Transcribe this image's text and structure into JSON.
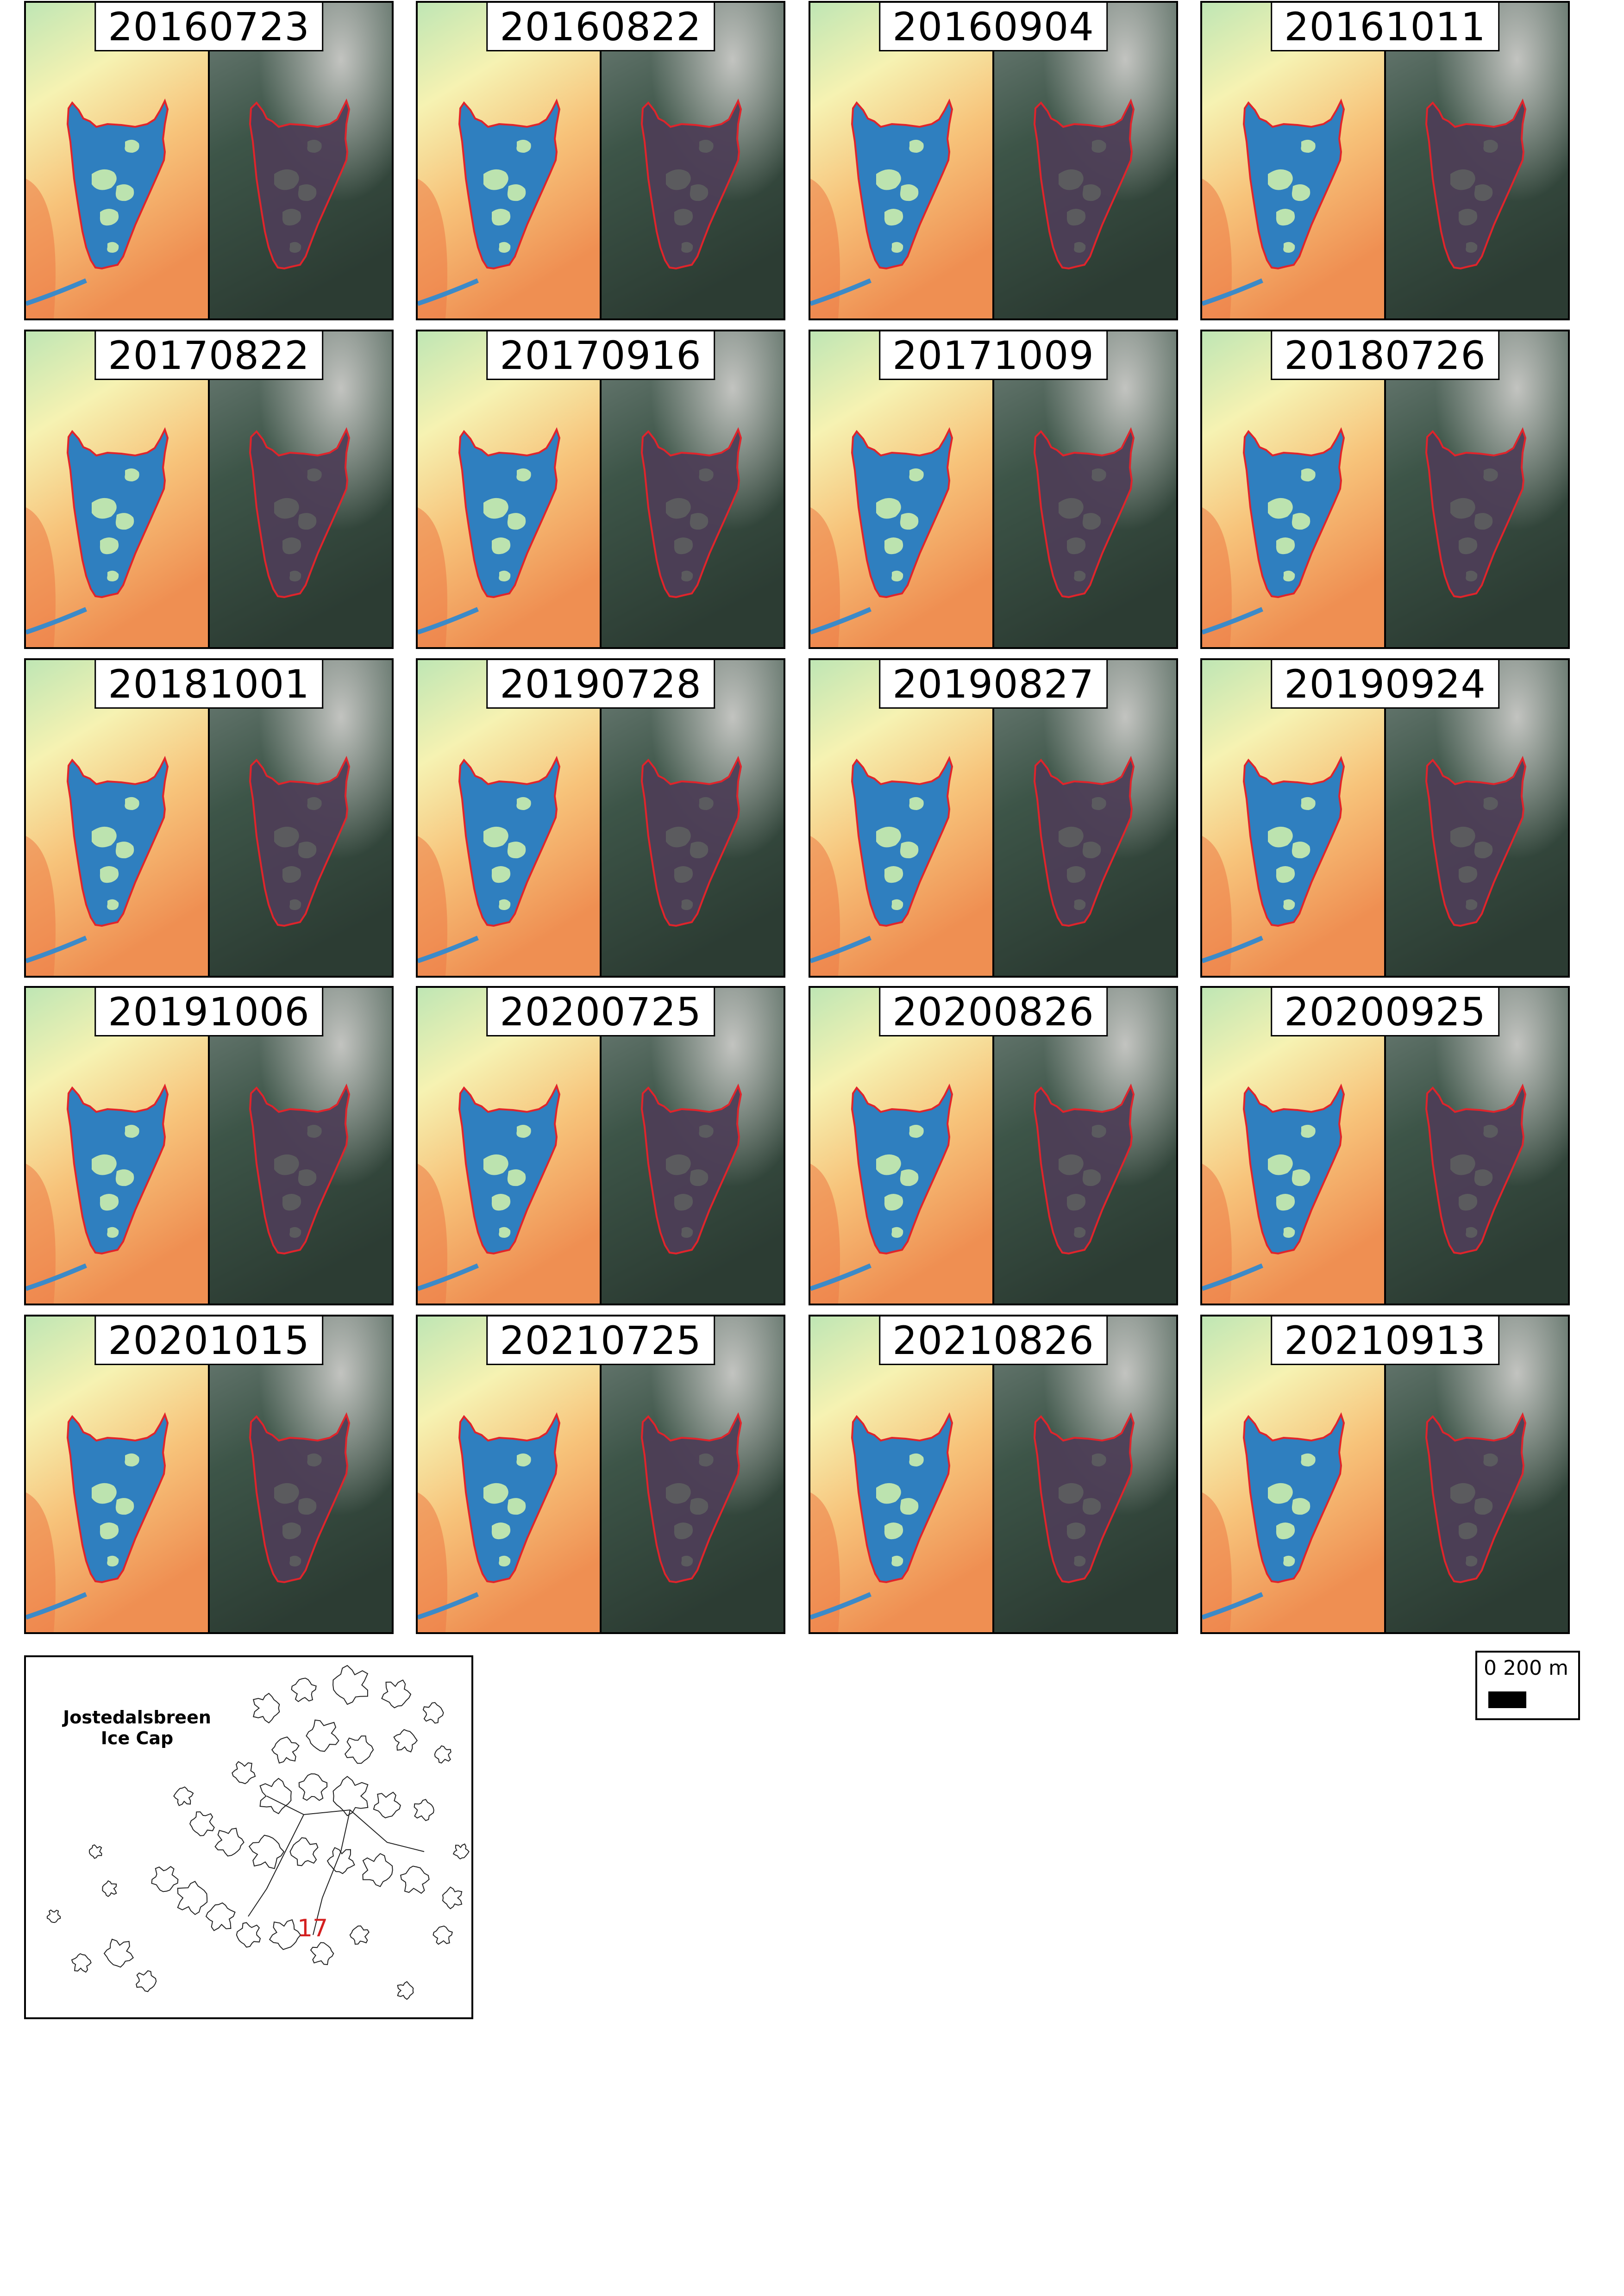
{
  "panels": [
    {
      "date": "20160723"
    },
    {
      "date": "20160822"
    },
    {
      "date": "20160904"
    },
    {
      "date": "20161011"
    },
    {
      "date": "20170822"
    },
    {
      "date": "20170916"
    },
    {
      "date": "20171009"
    },
    {
      "date": "20180726"
    },
    {
      "date": "20181001"
    },
    {
      "date": "20190728"
    },
    {
      "date": "20190827"
    },
    {
      "date": "20190924"
    },
    {
      "date": "20191006"
    },
    {
      "date": "20200725"
    },
    {
      "date": "20200826"
    },
    {
      "date": "20200925"
    },
    {
      "date": "20201015"
    },
    {
      "date": "20210725"
    },
    {
      "date": "20210826"
    },
    {
      "date": "20210913"
    }
  ],
  "scale_bar": {
    "label": "0  200 m",
    "length_m": 200
  },
  "inset": {
    "title": "Jostedalsbreen\nIce Cap",
    "marker": "17"
  },
  "colors": {
    "outline": "#e0242b",
    "water_index_lake": "#2f7fbf",
    "water_index_ice": "#c9ecae",
    "water_index_land_warm": "#ef8f52",
    "water_index_land_pale": "#f6f2b2",
    "true_color_forest": "#3d5548",
    "true_color_snow": "#c9c9c6",
    "true_color_lake": "#4d3e56"
  }
}
